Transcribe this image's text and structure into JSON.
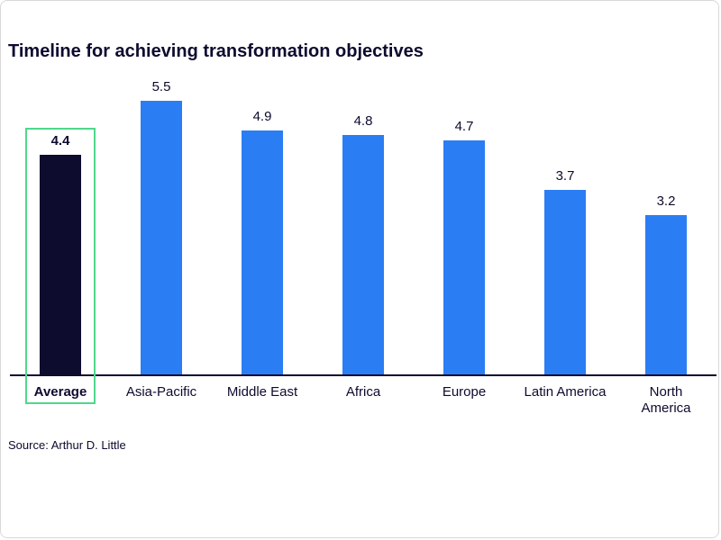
{
  "chart_data": {
    "type": "bar",
    "title": "Timeline for achieving transformation objectives",
    "categories": [
      "Average",
      "Asia-Pacific",
      "Middle East",
      "Africa",
      "Europe",
      "Latin America",
      "North America"
    ],
    "values": [
      4.4,
      5.5,
      4.9,
      4.8,
      4.7,
      3.7,
      3.2
    ],
    "value_labels_shown": true,
    "highlight_index": 0,
    "highlight_style": "dark navy bar enclosed in green outline box",
    "xlabel": "",
    "ylabel": "",
    "ylim": [
      0,
      5.6
    ],
    "grid": false,
    "legend": false,
    "source": "Source: Arthur D. Little",
    "colors": {
      "bar": "#2b7df3",
      "highlight_bar": "#0d0b2e",
      "highlight_box": "#4fd78c",
      "axis": "#0d0b2e",
      "text": "#0d0b2e"
    }
  }
}
